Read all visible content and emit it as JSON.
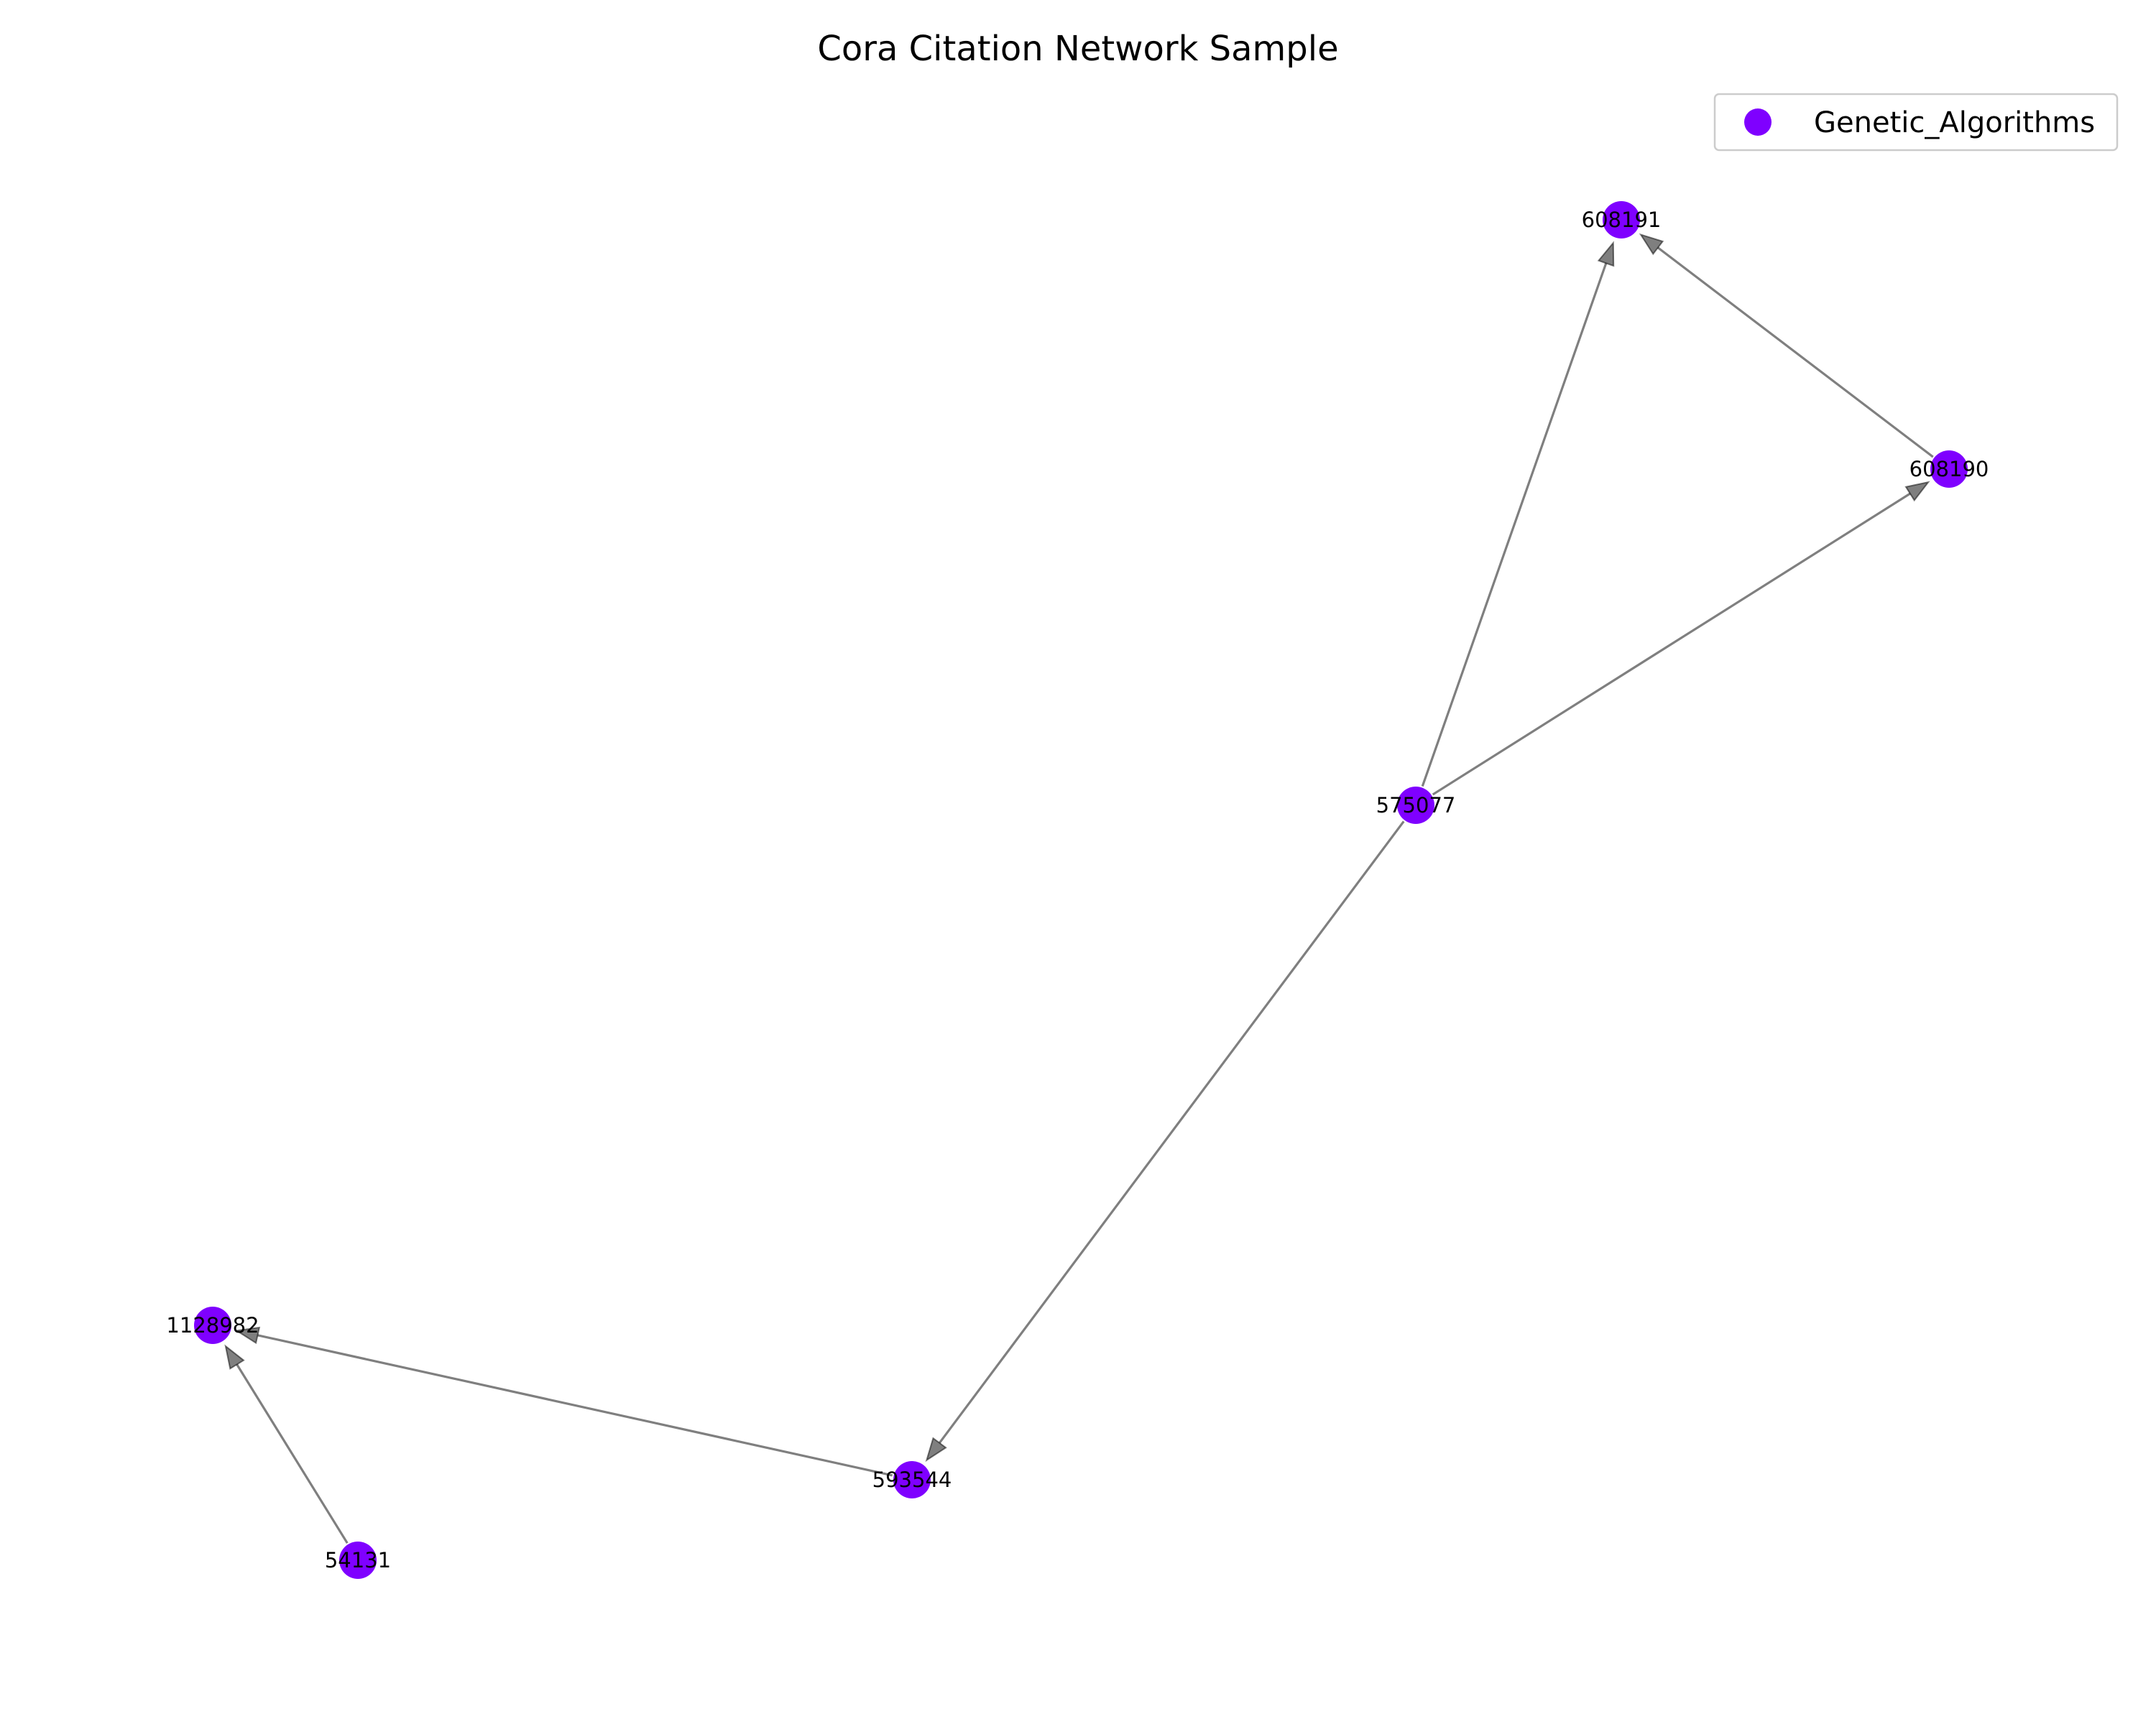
{
  "figure": {
    "title": "Cora Citation Network Sample"
  },
  "legend": {
    "items": [
      {
        "label": "Genetic_Algorithms",
        "color": "#7f00ff"
      }
    ]
  },
  "graph": {
    "nodes": [
      {
        "id": "608191",
        "label": "608191",
        "category": "Genetic_Algorithms"
      },
      {
        "id": "608190",
        "label": "608190",
        "category": "Genetic_Algorithms"
      },
      {
        "id": "575077",
        "label": "575077",
        "category": "Genetic_Algorithms"
      },
      {
        "id": "1128982",
        "label": "1128982",
        "category": "Genetic_Algorithms"
      },
      {
        "id": "593544",
        "label": "593544",
        "category": "Genetic_Algorithms"
      },
      {
        "id": "54131",
        "label": "54131",
        "category": "Genetic_Algorithms"
      }
    ],
    "edges": [
      {
        "source": "575077",
        "target": "608191"
      },
      {
        "source": "575077",
        "target": "608190"
      },
      {
        "source": "608190",
        "target": "608191"
      },
      {
        "source": "575077",
        "target": "593544"
      },
      {
        "source": "593544",
        "target": "1128982"
      },
      {
        "source": "54131",
        "target": "1128982"
      }
    ],
    "node_color": "#7f00ff",
    "edge_color": "#000000"
  }
}
